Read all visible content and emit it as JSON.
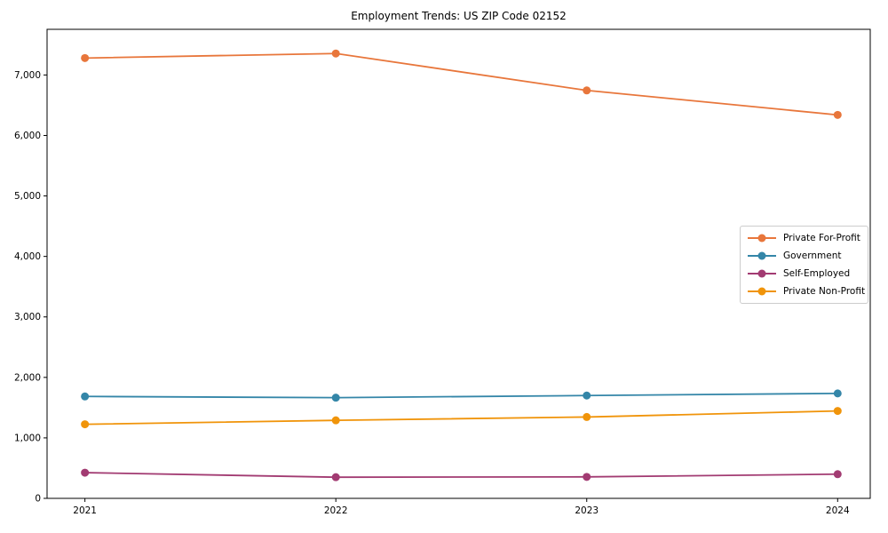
{
  "chart_data": {
    "type": "line",
    "title": "Employment Trends: US ZIP Code 02152",
    "xlabel": "",
    "ylabel": "",
    "categories": [
      "2021",
      "2022",
      "2023",
      "2024"
    ],
    "series": [
      {
        "name": "Private For-Profit",
        "color": "#E8763B",
        "values": [
          7280,
          7355,
          6745,
          6340
        ]
      },
      {
        "name": "Government",
        "color": "#3486A8",
        "values": [
          1685,
          1665,
          1700,
          1735
        ]
      },
      {
        "name": "Self-Employed",
        "color": "#A23B72",
        "values": [
          425,
          350,
          355,
          400
        ]
      },
      {
        "name": "Private Non-Profit",
        "color": "#F0940A",
        "values": [
          1225,
          1290,
          1345,
          1445
        ]
      }
    ],
    "ylim": [
      0,
      7755
    ],
    "yticks": [
      0,
      1000,
      2000,
      3000,
      4000,
      5000,
      6000,
      7000
    ],
    "ytick_labels": [
      "0",
      "1,000",
      "2,000",
      "3,000",
      "4,000",
      "5,000",
      "6,000",
      "7,000"
    ],
    "grid": false,
    "legend_position": "center right",
    "axis_color": "#000000",
    "tick_label_color": "#000000"
  }
}
